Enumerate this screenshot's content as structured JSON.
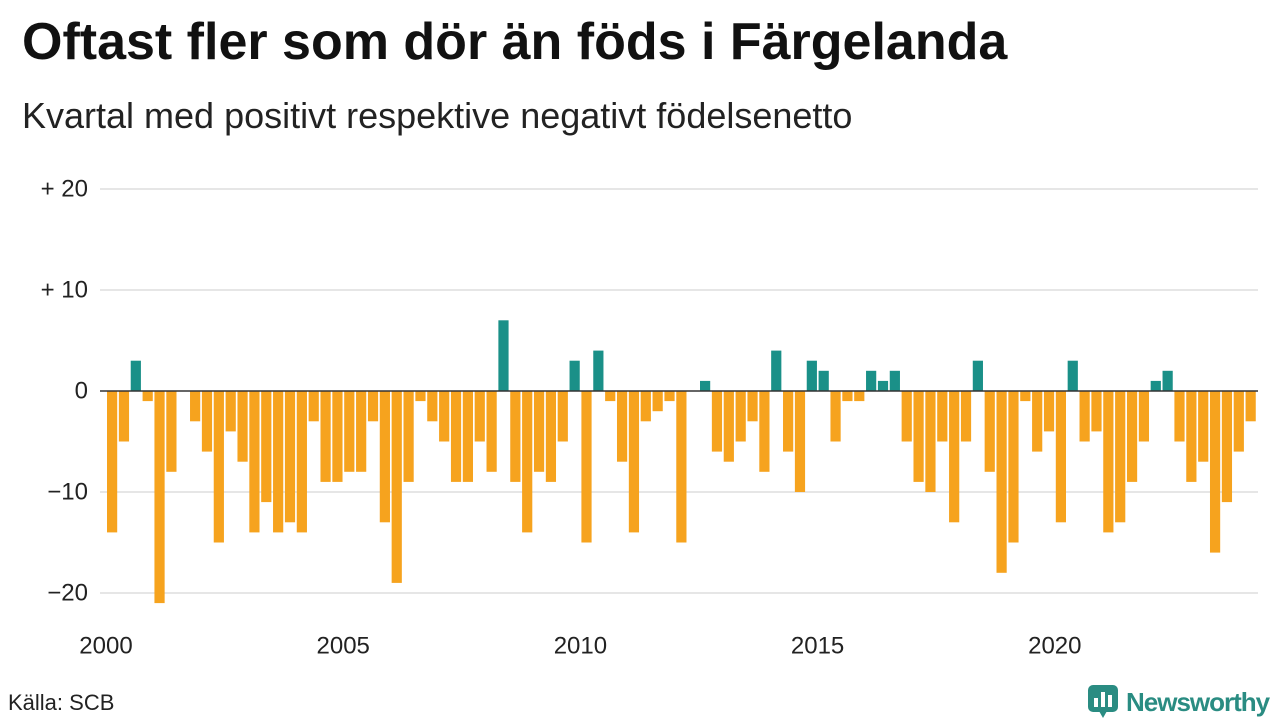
{
  "chart_data": {
    "type": "bar",
    "title": "Oftast fler som dör än föds i Färgelanda",
    "subtitle": "Kvartal med positivt respektive negativt födelsenetto",
    "values_by_year": [
      {
        "year": 2000,
        "quarters": [
          -14,
          -5,
          3,
          -1
        ]
      },
      {
        "year": 2001,
        "quarters": [
          -21,
          -8,
          0,
          -3
        ]
      },
      {
        "year": 2002,
        "quarters": [
          -6,
          -15,
          -4,
          -7
        ]
      },
      {
        "year": 2003,
        "quarters": [
          -14,
          -11,
          -14,
          -13
        ]
      },
      {
        "year": 2004,
        "quarters": [
          -14,
          -3,
          -9,
          -9
        ]
      },
      {
        "year": 2005,
        "quarters": [
          -8,
          -8,
          -3,
          -13
        ]
      },
      {
        "year": 2006,
        "quarters": [
          -19,
          -9,
          -1,
          -3
        ]
      },
      {
        "year": 2007,
        "quarters": [
          -5,
          -9,
          -9,
          -5
        ]
      },
      {
        "year": 2008,
        "quarters": [
          -8,
          7,
          -9,
          -14
        ]
      },
      {
        "year": 2009,
        "quarters": [
          -8,
          -9,
          -5,
          3
        ]
      },
      {
        "year": 2010,
        "quarters": [
          -15,
          4,
          -1,
          -7
        ]
      },
      {
        "year": 2011,
        "quarters": [
          -14,
          -3,
          -2,
          -1
        ]
      },
      {
        "year": 2012,
        "quarters": [
          -15,
          0,
          1,
          -6
        ]
      },
      {
        "year": 2013,
        "quarters": [
          -7,
          -5,
          -3,
          -8
        ]
      },
      {
        "year": 2014,
        "quarters": [
          4,
          -6,
          -10,
          3
        ]
      },
      {
        "year": 2015,
        "quarters": [
          2,
          -5,
          -1,
          -1
        ]
      },
      {
        "year": 2016,
        "quarters": [
          2,
          1,
          2,
          -5
        ]
      },
      {
        "year": 2017,
        "quarters": [
          -9,
          -10,
          -5,
          -13
        ]
      },
      {
        "year": 2018,
        "quarters": [
          -5,
          3,
          -8,
          -18
        ]
      },
      {
        "year": 2019,
        "quarters": [
          -15,
          -1,
          -6,
          -4
        ]
      },
      {
        "year": 2020,
        "quarters": [
          -13,
          3,
          -5,
          -4
        ]
      },
      {
        "year": 2021,
        "quarters": [
          -14,
          -13,
          -9,
          -5
        ]
      },
      {
        "year": 2022,
        "quarters": [
          1,
          2,
          -5,
          -9
        ]
      },
      {
        "year": 2023,
        "quarters": [
          -7,
          -16,
          -11,
          -6
        ]
      },
      {
        "year": 2024,
        "quarters": [
          -3
        ]
      }
    ],
    "x_ticks": [
      "2000",
      "2005",
      "2010",
      "2015",
      "2020"
    ],
    "y_ticks": [
      {
        "value": 20,
        "label": "+ 20"
      },
      {
        "value": 10,
        "label": "+ 10"
      },
      {
        "value": 0,
        "label": "0"
      },
      {
        "value": -10,
        "label": "−10"
      },
      {
        "value": -20,
        "label": "−20"
      }
    ],
    "ylim": [
      -22,
      20
    ],
    "grid": true,
    "colors": {
      "positive": "#1a9088",
      "negative": "#f6a31e",
      "zero_line": "#333333",
      "grid": "#dddddd"
    }
  },
  "footer": {
    "source": "Källa: SCB",
    "brand": "Newsworthy",
    "brand_icon": "newsworthy-logo-icon",
    "brand_color": "#2a8c82"
  }
}
